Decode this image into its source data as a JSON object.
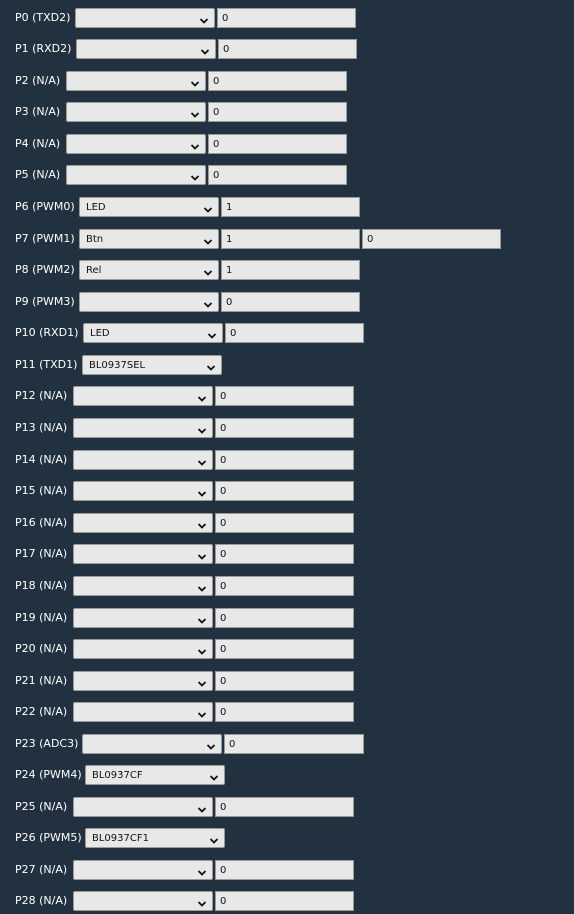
{
  "pins": [
    {
      "label": "P0 (TXD2)",
      "role": "",
      "value": "0"
    },
    {
      "label": "P1 (RXD2)",
      "role": "",
      "value": "0"
    },
    {
      "label": "P2 (N/A)",
      "role": "",
      "value": "0"
    },
    {
      "label": "P3 (N/A)",
      "role": "",
      "value": "0"
    },
    {
      "label": "P4 (N/A)",
      "role": "",
      "value": "0"
    },
    {
      "label": "P5 (N/A)",
      "role": "",
      "value": "0"
    },
    {
      "label": "P6 (PWM0)",
      "role": "LED",
      "value": "1"
    },
    {
      "label": "P7 (PWM1)",
      "role": "Btn",
      "value": "1",
      "value2": "0"
    },
    {
      "label": "P8 (PWM2)",
      "role": "Rel",
      "value": "1"
    },
    {
      "label": "P9 (PWM3)",
      "role": "",
      "value": "0"
    },
    {
      "label": "P10 (RXD1)",
      "role": "LED",
      "value": "0"
    },
    {
      "label": "P11 (TXD1)",
      "role": "BL0937SEL"
    },
    {
      "label": "P12 (N/A)",
      "role": "",
      "value": "0"
    },
    {
      "label": "P13 (N/A)",
      "role": "",
      "value": "0"
    },
    {
      "label": "P14 (N/A)",
      "role": "",
      "value": "0"
    },
    {
      "label": "P15 (N/A)",
      "role": "",
      "value": "0"
    },
    {
      "label": "P16 (N/A)",
      "role": "",
      "value": "0"
    },
    {
      "label": "P17 (N/A)",
      "role": "",
      "value": "0"
    },
    {
      "label": "P18 (N/A)",
      "role": "",
      "value": "0"
    },
    {
      "label": "P19 (N/A)",
      "role": "",
      "value": "0"
    },
    {
      "label": "P20 (N/A)",
      "role": "",
      "value": "0"
    },
    {
      "label": "P21 (N/A)",
      "role": "",
      "value": "0"
    },
    {
      "label": "P22 (N/A)",
      "role": "",
      "value": "0"
    },
    {
      "label": "P23 (ADC3)",
      "role": "",
      "value": "0"
    },
    {
      "label": "P24 (PWM4)",
      "role": "BL0937CF"
    },
    {
      "label": "P25 (N/A)",
      "role": "",
      "value": "0"
    },
    {
      "label": "P26 (PWM5)",
      "role": "BL0937CF1"
    },
    {
      "label": "P27 (N/A)",
      "role": "",
      "value": "0"
    },
    {
      "label": "P28 (N/A)",
      "role": "",
      "value": "0"
    }
  ]
}
